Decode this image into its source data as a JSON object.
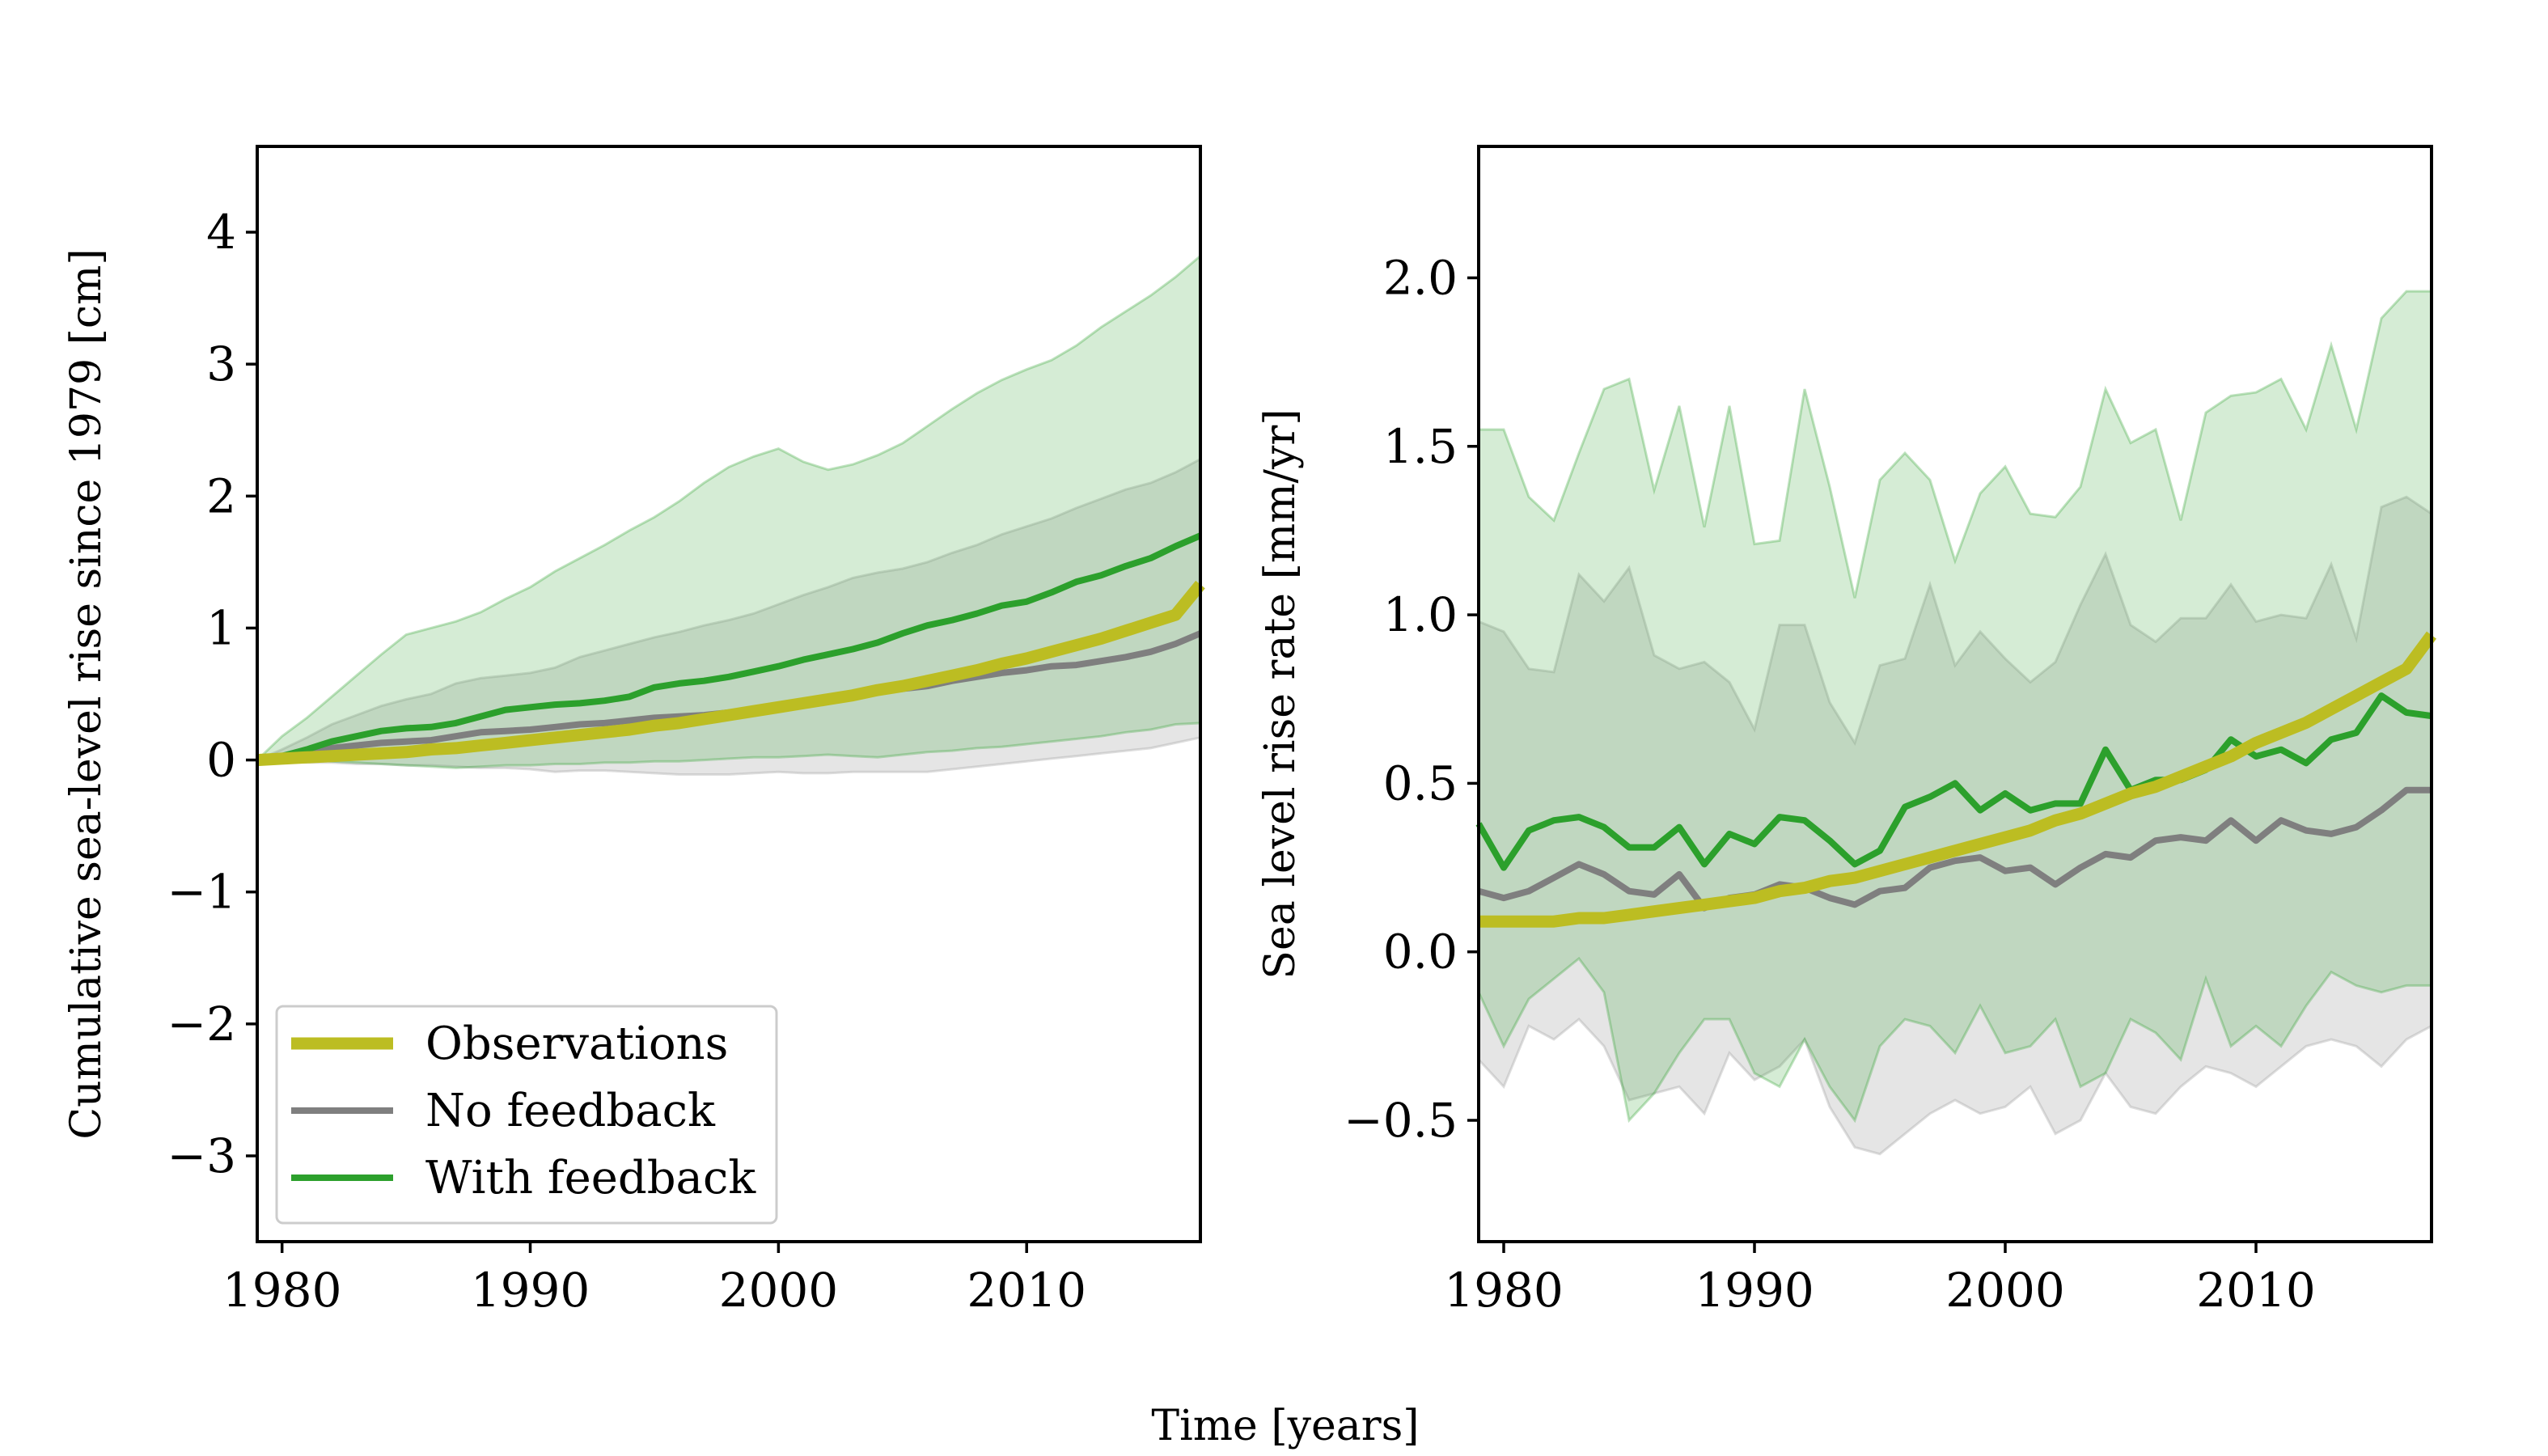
{
  "figure": {
    "shared_xlabel": "Time [years]"
  },
  "colors": {
    "observations": "#bcbd22",
    "no_feedback": "#7f7f7f",
    "with_feedback": "#2ca02c",
    "with_feedback_band": "#2ca02c",
    "no_feedback_band": "#a0a0a0"
  },
  "chart_data": [
    {
      "type": "line",
      "panel": "left",
      "title": "",
      "xlabel": "",
      "ylabel": "Cumulative sea-level rise since 1979 [cm]",
      "xlim": [
        1979,
        2017
      ],
      "ylim": [
        -3.65,
        4.65
      ],
      "xticks": [
        1980,
        1990,
        2000,
        2010
      ],
      "xtick_labels": [
        "1980",
        "1990",
        "2000",
        "2010"
      ],
      "yticks": [
        -3,
        -2,
        -1,
        0,
        1,
        2,
        3,
        4
      ],
      "ytick_labels": [
        "−3",
        "−2",
        "−1",
        "0",
        "1",
        "2",
        "3",
        "4"
      ],
      "grid": false,
      "legend": {
        "placement": "lower-left",
        "entries": [
          "Observations",
          "No feedback",
          "With feedback"
        ]
      },
      "x": [
        1979,
        1980,
        1981,
        1982,
        1983,
        1984,
        1985,
        1986,
        1987,
        1988,
        1989,
        1990,
        1991,
        1992,
        1993,
        1994,
        1995,
        1996,
        1997,
        1998,
        1999,
        2000,
        2001,
        2002,
        2003,
        2004,
        2005,
        2006,
        2007,
        2008,
        2009,
        2010,
        2011,
        2012,
        2013,
        2014,
        2015,
        2016,
        2017
      ],
      "series": [
        {
          "name": "Observations",
          "key": "observations",
          "values": [
            0.0,
            0.01,
            0.02,
            0.03,
            0.04,
            0.05,
            0.06,
            0.08,
            0.09,
            0.11,
            0.13,
            0.15,
            0.17,
            0.19,
            0.21,
            0.23,
            0.26,
            0.28,
            0.31,
            0.34,
            0.37,
            0.4,
            0.43,
            0.46,
            0.49,
            0.53,
            0.56,
            0.6,
            0.64,
            0.68,
            0.73,
            0.77,
            0.82,
            0.87,
            0.92,
            0.98,
            1.04,
            1.1,
            1.33
          ]
        },
        {
          "name": "No feedback",
          "key": "no_feedback",
          "values": [
            0.0,
            0.02,
            0.05,
            0.09,
            0.11,
            0.13,
            0.14,
            0.15,
            0.18,
            0.21,
            0.22,
            0.23,
            0.25,
            0.27,
            0.28,
            0.3,
            0.32,
            0.33,
            0.34,
            0.36,
            0.38,
            0.4,
            0.42,
            0.45,
            0.48,
            0.52,
            0.54,
            0.56,
            0.6,
            0.63,
            0.66,
            0.68,
            0.71,
            0.72,
            0.75,
            0.78,
            0.82,
            0.88,
            0.96
          ]
        },
        {
          "name": "With feedback",
          "key": "with_feedback",
          "values": [
            0.0,
            0.03,
            0.08,
            0.14,
            0.18,
            0.22,
            0.24,
            0.25,
            0.28,
            0.33,
            0.38,
            0.4,
            0.42,
            0.43,
            0.45,
            0.48,
            0.55,
            0.58,
            0.6,
            0.63,
            0.67,
            0.71,
            0.76,
            0.8,
            0.84,
            0.89,
            0.96,
            1.02,
            1.06,
            1.11,
            1.17,
            1.2,
            1.27,
            1.35,
            1.4,
            1.47,
            1.53,
            1.62,
            1.7
          ]
        }
      ],
      "bands": [
        {
          "key": "no_feedback_band",
          "lower": [
            0.0,
            -0.01,
            -0.02,
            -0.02,
            -0.03,
            -0.03,
            -0.04,
            -0.04,
            -0.05,
            -0.06,
            -0.06,
            -0.07,
            -0.09,
            -0.08,
            -0.08,
            -0.09,
            -0.1,
            -0.11,
            -0.11,
            -0.11,
            -0.1,
            -0.09,
            -0.1,
            -0.1,
            -0.09,
            -0.09,
            -0.09,
            -0.09,
            -0.07,
            -0.05,
            -0.03,
            -0.01,
            0.01,
            0.03,
            0.05,
            0.07,
            0.09,
            0.13,
            0.17
          ],
          "upper": [
            0.0,
            0.08,
            0.17,
            0.27,
            0.34,
            0.41,
            0.46,
            0.5,
            0.58,
            0.62,
            0.64,
            0.66,
            0.7,
            0.78,
            0.83,
            0.88,
            0.93,
            0.97,
            1.02,
            1.06,
            1.11,
            1.18,
            1.25,
            1.31,
            1.38,
            1.42,
            1.45,
            1.5,
            1.57,
            1.63,
            1.71,
            1.77,
            1.83,
            1.91,
            1.98,
            2.05,
            2.1,
            2.18,
            2.28
          ]
        },
        {
          "key": "with_feedback_band",
          "lower": [
            0.0,
            0.0,
            0.0,
            -0.01,
            -0.02,
            -0.03,
            -0.04,
            -0.05,
            -0.06,
            -0.05,
            -0.04,
            -0.04,
            -0.03,
            -0.03,
            -0.02,
            -0.02,
            -0.01,
            -0.01,
            0.0,
            0.01,
            0.02,
            0.02,
            0.03,
            0.04,
            0.03,
            0.02,
            0.04,
            0.06,
            0.07,
            0.09,
            0.1,
            0.12,
            0.14,
            0.16,
            0.18,
            0.21,
            0.23,
            0.27,
            0.28
          ],
          "upper": [
            0.0,
            0.18,
            0.32,
            0.48,
            0.64,
            0.8,
            0.95,
            1.0,
            1.05,
            1.12,
            1.22,
            1.31,
            1.43,
            1.53,
            1.63,
            1.74,
            1.84,
            1.96,
            2.1,
            2.22,
            2.3,
            2.36,
            2.26,
            2.2,
            2.24,
            2.31,
            2.4,
            2.53,
            2.66,
            2.78,
            2.88,
            2.96,
            3.03,
            3.14,
            3.28,
            3.4,
            3.52,
            3.66,
            3.82
          ]
        }
      ]
    },
    {
      "type": "line",
      "panel": "right",
      "title": "",
      "xlabel": "",
      "ylabel": "Sea level rise rate [mm/yr]",
      "xlim": [
        1979,
        2017
      ],
      "ylim": [
        -0.86,
        2.39
      ],
      "xticks": [
        1980,
        1990,
        2000,
        2010
      ],
      "xtick_labels": [
        "1980",
        "1990",
        "2000",
        "2010"
      ],
      "yticks": [
        -0.5,
        0.0,
        0.5,
        1.0,
        1.5,
        2.0
      ],
      "ytick_labels": [
        "−0.5",
        "0.0",
        "0.5",
        "1.0",
        "1.5",
        "2.0"
      ],
      "grid": false,
      "x": [
        1979,
        1980,
        1981,
        1982,
        1983,
        1984,
        1985,
        1986,
        1987,
        1988,
        1989,
        1990,
        1991,
        1992,
        1993,
        1994,
        1995,
        1996,
        1997,
        1998,
        1999,
        2000,
        2001,
        2002,
        2003,
        2004,
        2005,
        2006,
        2007,
        2008,
        2009,
        2010,
        2011,
        2012,
        2013,
        2014,
        2015,
        2016,
        2017
      ],
      "series": [
        {
          "name": "Observations",
          "key": "observations",
          "values": [
            0.09,
            0.09,
            0.09,
            0.09,
            0.1,
            0.1,
            0.11,
            0.12,
            0.13,
            0.14,
            0.15,
            0.16,
            0.18,
            0.19,
            0.21,
            0.22,
            0.24,
            0.26,
            0.28,
            0.3,
            0.32,
            0.34,
            0.36,
            0.39,
            0.41,
            0.44,
            0.47,
            0.49,
            0.52,
            0.55,
            0.58,
            0.62,
            0.65,
            0.68,
            0.72,
            0.76,
            0.8,
            0.84,
            0.94
          ]
        },
        {
          "name": "No feedback",
          "key": "no_feedback",
          "values": [
            0.18,
            0.16,
            0.18,
            0.22,
            0.26,
            0.23,
            0.18,
            0.17,
            0.23,
            0.13,
            0.16,
            0.17,
            0.2,
            0.19,
            0.16,
            0.14,
            0.18,
            0.19,
            0.25,
            0.27,
            0.28,
            0.24,
            0.25,
            0.2,
            0.25,
            0.29,
            0.28,
            0.33,
            0.34,
            0.33,
            0.39,
            0.33,
            0.39,
            0.36,
            0.35,
            0.37,
            0.42,
            0.48,
            0.48
          ]
        },
        {
          "name": "With feedback",
          "key": "with_feedback",
          "values": [
            0.38,
            0.25,
            0.36,
            0.39,
            0.4,
            0.37,
            0.31,
            0.31,
            0.37,
            0.26,
            0.35,
            0.32,
            0.4,
            0.39,
            0.33,
            0.26,
            0.3,
            0.43,
            0.46,
            0.5,
            0.42,
            0.47,
            0.42,
            0.44,
            0.44,
            0.6,
            0.48,
            0.51,
            0.51,
            0.54,
            0.63,
            0.58,
            0.6,
            0.56,
            0.63,
            0.65,
            0.76,
            0.71,
            0.7
          ]
        }
      ],
      "bands": [
        {
          "key": "no_feedback_band",
          "lower": [
            -0.32,
            -0.4,
            -0.22,
            -0.26,
            -0.2,
            -0.28,
            -0.44,
            -0.42,
            -0.4,
            -0.48,
            -0.3,
            -0.38,
            -0.34,
            -0.26,
            -0.46,
            -0.58,
            -0.6,
            -0.54,
            -0.48,
            -0.44,
            -0.48,
            -0.46,
            -0.4,
            -0.54,
            -0.5,
            -0.36,
            -0.46,
            -0.48,
            -0.4,
            -0.34,
            -0.36,
            -0.4,
            -0.34,
            -0.28,
            -0.26,
            -0.28,
            -0.34,
            -0.26,
            -0.22
          ],
          "upper": [
            0.98,
            0.95,
            0.84,
            0.83,
            1.12,
            1.04,
            1.14,
            0.88,
            0.84,
            0.86,
            0.8,
            0.66,
            0.97,
            0.97,
            0.74,
            0.62,
            0.85,
            0.87,
            1.09,
            0.85,
            0.95,
            0.87,
            0.8,
            0.86,
            1.03,
            1.18,
            0.97,
            0.92,
            0.99,
            0.99,
            1.09,
            0.98,
            1.0,
            0.99,
            1.15,
            0.93,
            1.32,
            1.35,
            1.3
          ]
        },
        {
          "key": "with_feedback_band",
          "lower": [
            -0.12,
            -0.28,
            -0.14,
            -0.08,
            -0.02,
            -0.12,
            -0.5,
            -0.42,
            -0.3,
            -0.2,
            -0.2,
            -0.36,
            -0.4,
            -0.26,
            -0.4,
            -0.5,
            -0.28,
            -0.2,
            -0.22,
            -0.3,
            -0.16,
            -0.3,
            -0.28,
            -0.2,
            -0.4,
            -0.36,
            -0.2,
            -0.24,
            -0.32,
            -0.08,
            -0.28,
            -0.22,
            -0.28,
            -0.16,
            -0.06,
            -0.1,
            -0.12,
            -0.1,
            -0.1
          ],
          "upper": [
            1.55,
            1.55,
            1.35,
            1.28,
            1.48,
            1.67,
            1.7,
            1.37,
            1.62,
            1.26,
            1.62,
            1.21,
            1.22,
            1.67,
            1.38,
            1.05,
            1.4,
            1.48,
            1.4,
            1.16,
            1.36,
            1.44,
            1.3,
            1.29,
            1.38,
            1.67,
            1.51,
            1.55,
            1.28,
            1.6,
            1.65,
            1.66,
            1.7,
            1.55,
            1.8,
            1.55,
            1.88,
            1.96,
            1.96
          ]
        }
      ]
    }
  ]
}
